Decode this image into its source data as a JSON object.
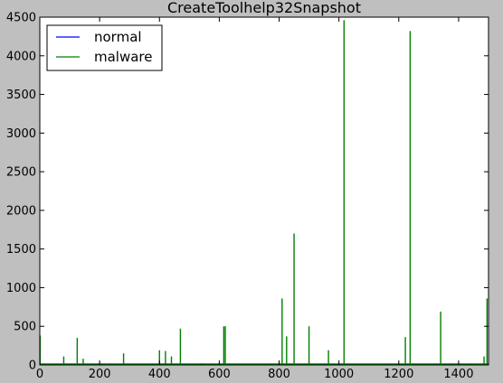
{
  "chart_data": {
    "type": "line",
    "title": "CreateToolhelp32Snapshot",
    "xlabel": "",
    "ylabel": "",
    "xlim": [
      0,
      1500
    ],
    "ylim": [
      0,
      4500
    ],
    "xticks": [
      0,
      200,
      400,
      600,
      800,
      1000,
      1200,
      1400
    ],
    "yticks": [
      0,
      500,
      1000,
      1500,
      2000,
      2500,
      3000,
      3500,
      4000,
      4500
    ],
    "grid": false,
    "legend": "top-left",
    "series": [
      {
        "name": "normal",
        "color": "#0000ff",
        "spikes": []
      },
      {
        "name": "malware",
        "color": "#008000",
        "spikes": [
          [
            1,
            380
          ],
          [
            80,
            110
          ],
          [
            125,
            350
          ],
          [
            145,
            80
          ],
          [
            235,
            20
          ],
          [
            280,
            150
          ],
          [
            400,
            190
          ],
          [
            420,
            180
          ],
          [
            440,
            110
          ],
          [
            470,
            470
          ],
          [
            540,
            20
          ],
          [
            615,
            500
          ],
          [
            620,
            500
          ],
          [
            810,
            860
          ],
          [
            825,
            370
          ],
          [
            850,
            1700
          ],
          [
            900,
            500
          ],
          [
            965,
            190
          ],
          [
            1017,
            4460
          ],
          [
            1222,
            360
          ],
          [
            1238,
            4320
          ],
          [
            1340,
            690
          ],
          [
            1375,
            20
          ],
          [
            1485,
            110
          ],
          [
            1495,
            860
          ]
        ]
      }
    ]
  }
}
